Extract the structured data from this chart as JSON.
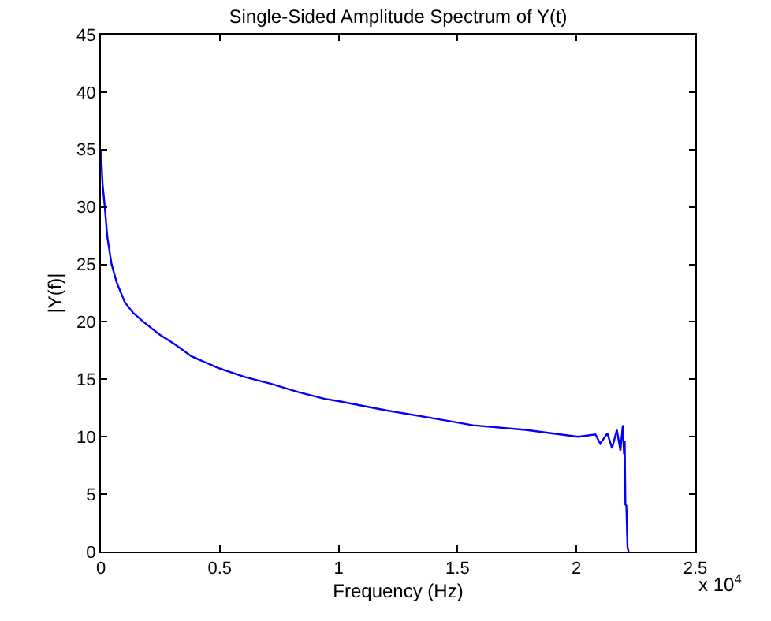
{
  "chart_data": {
    "type": "line",
    "title": "Single-Sided Amplitude Spectrum of Y(t)",
    "xlabel": "Frequency (Hz)",
    "ylabel": "|Y(f)|",
    "annotations": [
      "x 10$^{4}$"
    ],
    "x": [
      0,
      0.007,
      0.016,
      0.027,
      0.045,
      0.067,
      0.101,
      0.135,
      0.179,
      0.247,
      0.314,
      0.381,
      0.493,
      0.605,
      0.717,
      0.829,
      0.942,
      1.0,
      1.2,
      1.4,
      1.565,
      1.786,
      2.007,
      2.08,
      2.1,
      2.13,
      2.15,
      2.17,
      2.185,
      2.195,
      2.2,
      2.203,
      2.206,
      2.21,
      2.215,
      2.22
    ],
    "series": [
      {
        "color": "#0000ff",
        "values": [
          35,
          32,
          30.1,
          27.4,
          25,
          23.4,
          21.7,
          20.8,
          20,
          18.9,
          18,
          17,
          16,
          15.2,
          14.6,
          13.9,
          13.3,
          13.1,
          12.3,
          11.6,
          11.0,
          10.6,
          10.0,
          10.2,
          9.4,
          10.3,
          9.0,
          10.6,
          8.8,
          11.0,
          8.5,
          9.6,
          4.1,
          4.0,
          0.3,
          0
        ]
      }
    ],
    "xlim": [
      0,
      2.5
    ],
    "xticks": [
      0,
      0.5,
      1,
      1.5,
      2,
      2.5
    ],
    "ylim": [
      0,
      45
    ],
    "yticks": [
      0,
      5,
      10,
      15,
      20,
      25,
      30,
      35,
      40,
      45
    ],
    "grid": false,
    "legend": false,
    "marker": "none",
    "line_style": "solid"
  }
}
